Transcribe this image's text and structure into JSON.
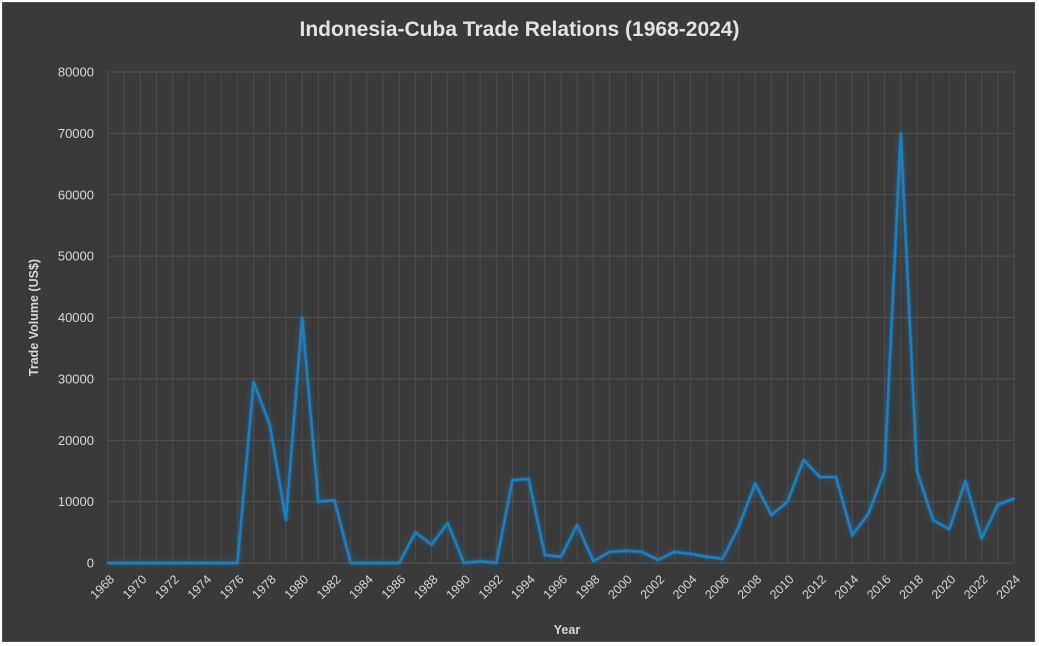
{
  "chart_data": {
    "type": "line",
    "title": "Indonesia-Cuba Trade Relations (1968-2024)",
    "xlabel": "Year",
    "ylabel": "Trade Volume (US$)",
    "ylim": [
      0,
      80000
    ],
    "yticks": [
      0,
      10000,
      20000,
      30000,
      40000,
      50000,
      60000,
      70000,
      80000
    ],
    "xticks": [
      1968,
      1970,
      1972,
      1974,
      1976,
      1978,
      1980,
      1982,
      1984,
      1986,
      1988,
      1990,
      1992,
      1994,
      1996,
      1998,
      2000,
      2002,
      2004,
      2006,
      2008,
      2010,
      2012,
      2014,
      2016,
      2018,
      2020,
      2022,
      2024
    ],
    "grid": true,
    "line_color": "#1f7fbf",
    "background_color": "#3a3a3a",
    "x": [
      1968,
      1969,
      1970,
      1971,
      1972,
      1973,
      1974,
      1975,
      1976,
      1977,
      1978,
      1979,
      1980,
      1981,
      1982,
      1983,
      1984,
      1985,
      1986,
      1987,
      1988,
      1989,
      1990,
      1991,
      1992,
      1993,
      1994,
      1995,
      1996,
      1997,
      1998,
      1999,
      2000,
      2001,
      2002,
      2003,
      2004,
      2005,
      2006,
      2007,
      2008,
      2009,
      2010,
      2011,
      2012,
      2013,
      2014,
      2015,
      2016,
      2017,
      2018,
      2019,
      2020,
      2021,
      2022,
      2023,
      2024
    ],
    "series": [
      {
        "values": [
          0,
          0,
          0,
          0,
          0,
          0,
          0,
          0,
          0,
          29500,
          22500,
          7000,
          40000,
          10000,
          10200,
          0,
          0,
          0,
          0,
          5000,
          3000,
          6500,
          0,
          300,
          0,
          13500,
          13700,
          1300,
          1000,
          6200,
          300,
          1800,
          2000,
          1800,
          500,
          1800,
          1500,
          1000,
          700,
          6000,
          13000,
          7800,
          10000,
          16800,
          14000,
          14000,
          4500,
          8000,
          15000,
          70000,
          15000,
          7000,
          5500,
          13400,
          4000,
          9500,
          10500
        ]
      }
    ]
  }
}
